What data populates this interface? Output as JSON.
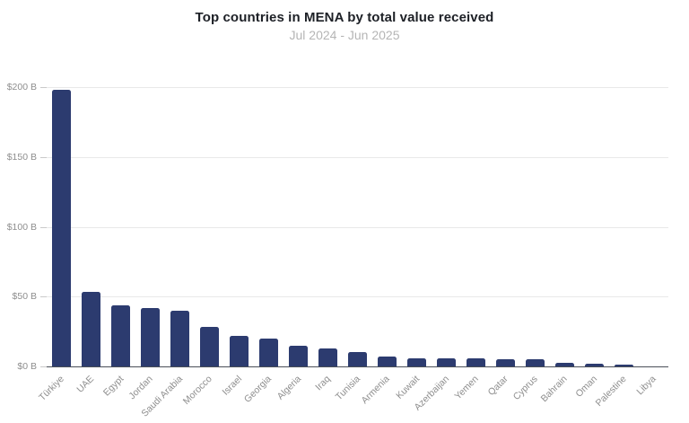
{
  "chart": {
    "title": "Top countries in MENA by total value received",
    "subtitle": "Jul 2024 - Jun 2025"
  },
  "chart_data": {
    "type": "bar",
    "title": "Top countries in MENA by total value received",
    "subtitle": "Jul 2024 - Jun 2025",
    "categories": [
      "Türkiye",
      "UAE",
      "Egypt",
      "Jordan",
      "Saudi Arabia",
      "Morocco",
      "Israel",
      "Georgia",
      "Algeria",
      "Iraq",
      "Tunisia",
      "Armenia",
      "Kuwait",
      "Azerbaijan",
      "Yemen",
      "Qatar",
      "Cyprus",
      "Bahrain",
      "Oman",
      "Palestine",
      "Libya"
    ],
    "values": [
      198,
      53.5,
      44,
      42,
      40,
      28,
      22,
      20,
      14.5,
      13,
      10,
      6.8,
      5.8,
      5.6,
      5.6,
      5.4,
      5.0,
      2.8,
      1.7,
      1.0,
      0.3
    ],
    "unit": "USD billions",
    "xlabel": "",
    "ylabel": "",
    "ylim": [
      0,
      200
    ],
    "yticks": [
      0,
      50,
      100,
      150,
      200
    ],
    "ytick_labels": [
      "$0 B",
      "$50 B",
      "$100 B",
      "$150 B",
      "$200 B"
    ],
    "grid": true,
    "legend": false,
    "legend_position": "none"
  },
  "colors": {
    "bar": "#2c3b6f",
    "title_text": "#1d2026",
    "subtitle_text": "#b5b5b5",
    "axis_text": "#8e8e8e",
    "gridline": "#e9e9e9",
    "axis_line": "#4a4f58"
  }
}
